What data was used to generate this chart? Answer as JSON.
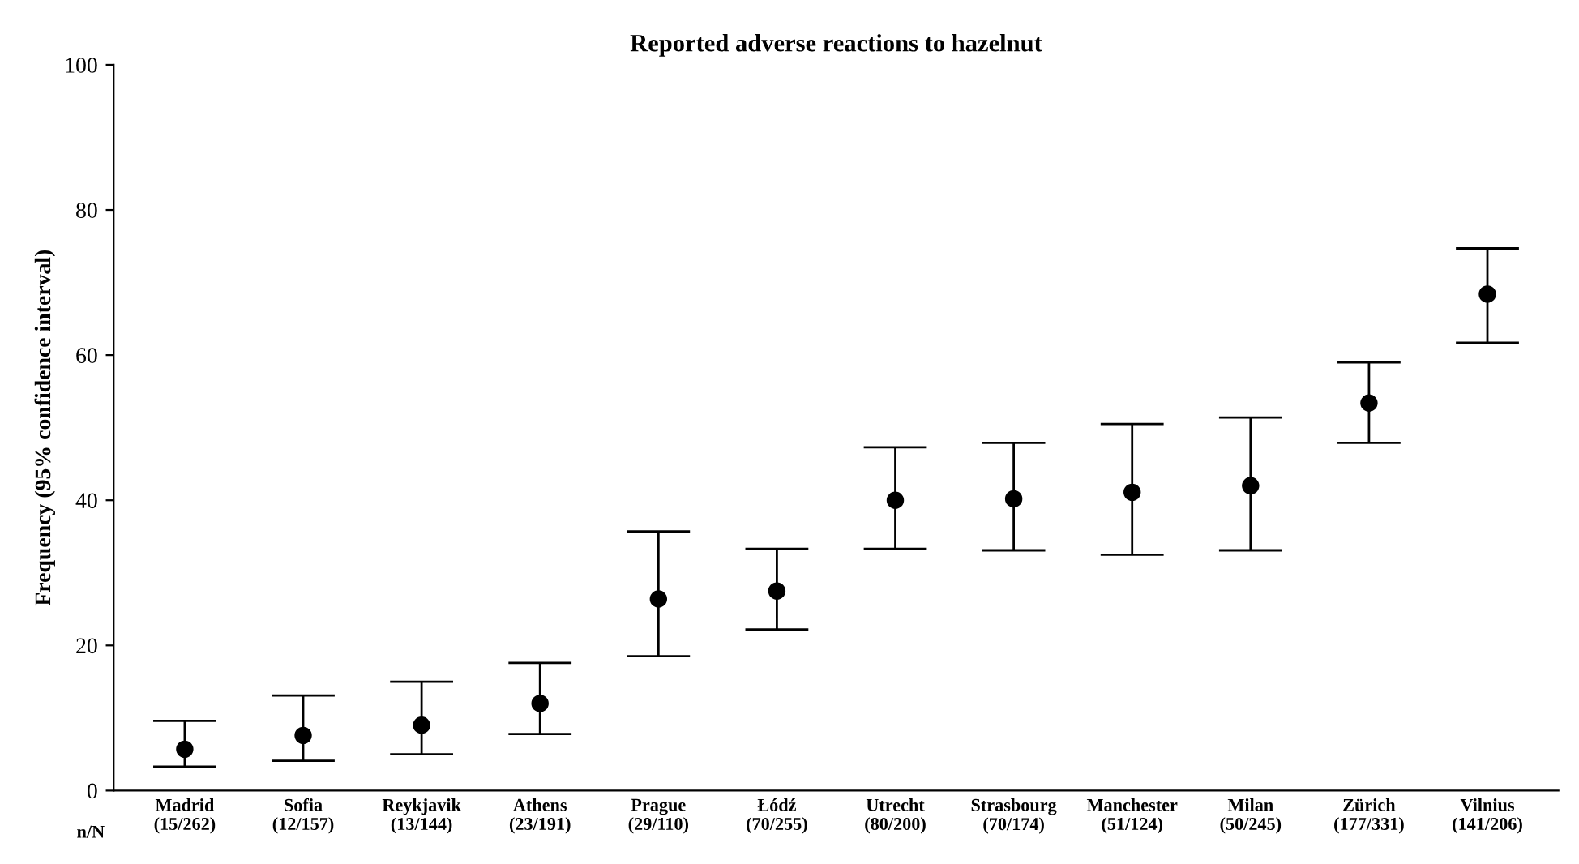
{
  "chart_data": {
    "type": "scatter",
    "title": "Reported adverse reactions to hazelnut",
    "ylabel": "Frequency (95% confidence interval)",
    "categories": [
      "Madrid\n(15/262)",
      "Sofia\n(12/157)",
      "Reykjavik\n(13/144)",
      "Athens\n(23/191)",
      "Prague\n(29/110)",
      "Łódź\n(70/255)",
      "Utrecht\n(80/200)",
      "Strasbourg\n(70/174)",
      "Manchester\n(51/124)",
      "Milan\n(50/245)",
      "Zürich\n(177/331)",
      "Vilnius\n(141/206)"
    ],
    "series": [
      {
        "color": "#000000",
        "values": [
          5.7,
          7.6,
          9.0,
          12.0,
          26.4,
          27.5,
          40.0,
          40.2,
          41.1,
          42.0,
          53.4,
          68.4
        ],
        "errors": [
          [
            3.3,
            9.6
          ],
          [
            4.1,
            13.1
          ],
          [
            5.0,
            15.0
          ],
          [
            7.8,
            17.6
          ],
          [
            18.5,
            35.7
          ],
          [
            22.2,
            33.3
          ],
          [
            33.3,
            47.3
          ],
          [
            33.1,
            47.9
          ],
          [
            32.5,
            50.5
          ],
          [
            33.1,
            51.4
          ],
          [
            47.9,
            59.0
          ],
          [
            61.7,
            74.7
          ]
        ]
      }
    ],
    "annotations": [
      "n/N"
    ],
    "ylim": [
      0,
      100
    ],
    "yticks": [
      0,
      20,
      40,
      60,
      80,
      100
    ],
    "marker": "circle",
    "grid": false,
    "legend": false
  }
}
